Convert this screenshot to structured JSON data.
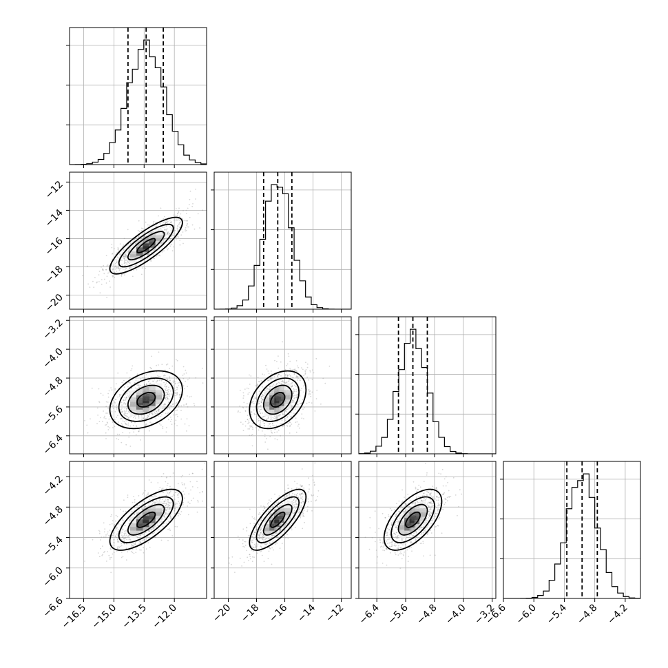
{
  "chart_data": {
    "type": "corner",
    "title": "",
    "parameters": [
      {
        "range": [
          -17.2,
          -10.4
        ],
        "ticks": [
          -16.5,
          -15.0,
          -13.5,
          -12.0
        ],
        "tick_labels": [
          "−16.5",
          "−15.0",
          "−13.5",
          "−12.0"
        ],
        "mean": -13.4,
        "sigma": 0.9,
        "quantiles": [
          -14.3,
          -13.4,
          -12.55
        ]
      },
      {
        "range": [
          -21.0,
          -11.3
        ],
        "ticks": [
          -20,
          -18,
          -16,
          -14,
          -12
        ],
        "tick_labels": [
          "−20",
          "−18",
          "−16",
          "−14",
          "−12"
        ],
        "mean": -16.5,
        "sigma": 1.0,
        "quantiles": [
          -17.5,
          -16.5,
          -15.5
        ]
      },
      {
        "range": [
          -6.9,
          -3.1
        ],
        "ticks": [
          -6.4,
          -5.6,
          -4.8,
          -4.0,
          -3.2
        ],
        "tick_labels": [
          "−6.4",
          "−5.6",
          "−4.8",
          "−4.0",
          "−3.2"
        ],
        "mean": -5.4,
        "sigma": 0.4,
        "quantiles": [
          -5.8,
          -5.4,
          -5.0
        ]
      },
      {
        "range": [
          -6.6,
          -3.9
        ],
        "ticks": [
          -6.6,
          -6.0,
          -5.4,
          -4.8,
          -4.2
        ],
        "tick_labels": [
          "−6.6",
          "−6.0",
          "−5.4",
          "−4.8",
          "−4.2"
        ],
        "mean": -5.05,
        "sigma": 0.3,
        "quantiles": [
          -5.35,
          -5.05,
          -4.75
        ]
      }
    ],
    "correlations": [
      [
        1,
        0.82,
        0.35,
        0.7
      ],
      [
        0.82,
        1,
        0.35,
        0.75
      ],
      [
        0.35,
        0.35,
        1,
        0.6
      ],
      [
        0.7,
        0.75,
        0.6,
        1
      ]
    ],
    "contour_levels_sigma": [
      0.5,
      1.0,
      1.5,
      2.0
    ],
    "grid": true,
    "colors": {
      "line": "#000000",
      "grid": "#b0b0b0",
      "points": "#8a8a8a"
    }
  }
}
